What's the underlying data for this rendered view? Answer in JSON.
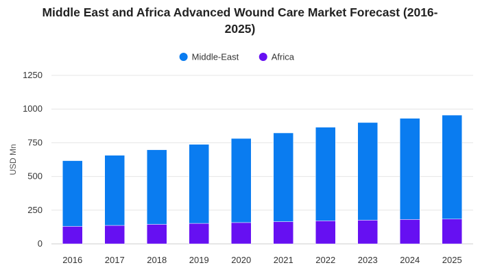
{
  "chart_data": {
    "type": "bar",
    "stacked": true,
    "title_lines": [
      "Middle East and Africa Advanced Wound Care Market Forecast (2016-",
      "2025)"
    ],
    "xlabel": "",
    "ylabel": "USD Mn",
    "ylim": [
      0,
      1250
    ],
    "yticks": [
      0,
      250,
      500,
      750,
      1000,
      1250
    ],
    "grid": true,
    "legend_position": "top-center",
    "categories": [
      "2016",
      "2017",
      "2018",
      "2019",
      "2020",
      "2021",
      "2022",
      "2023",
      "2024",
      "2025"
    ],
    "series": [
      {
        "name": "Africa",
        "color": "#6610f2",
        "values": [
          130,
          137,
          145,
          152,
          158,
          165,
          171,
          176,
          181,
          184
        ]
      },
      {
        "name": "Middle-East",
        "color": "#0a7cf0",
        "values": [
          487,
          520,
          553,
          586,
          624,
          658,
          694,
          724,
          750,
          771
        ]
      }
    ],
    "legend_order": [
      "Middle-East",
      "Africa"
    ]
  }
}
